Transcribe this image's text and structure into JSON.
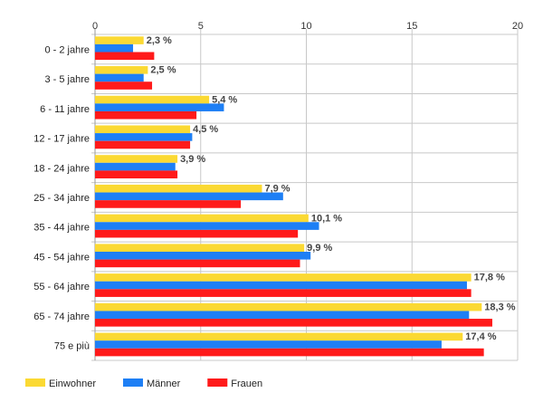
{
  "chart_data": {
    "type": "bar",
    "orientation": "horizontal",
    "categories": [
      "0 - 2 jahre",
      "3 - 5 jahre",
      "6 - 11 jahre",
      "12 - 17 jahre",
      "18 - 24 jahre",
      "25 - 34 jahre",
      "35 - 44 jahre",
      "45 - 54 jahre",
      "55 - 64 jahre",
      "65 - 74 jahre",
      "75 e più"
    ],
    "series": [
      {
        "name": "Einwohner",
        "color": "#FBD933",
        "values": [
          2.3,
          2.5,
          5.4,
          4.5,
          3.9,
          7.9,
          10.1,
          9.9,
          17.8,
          18.3,
          17.4
        ]
      },
      {
        "name": "Männer",
        "color": "#1E7FF5",
        "values": [
          1.8,
          2.3,
          6.1,
          4.6,
          3.8,
          8.9,
          10.6,
          10.2,
          17.6,
          17.7,
          16.4
        ]
      },
      {
        "name": "Frauen",
        "color": "#FF1A1A",
        "values": [
          2.8,
          2.7,
          4.8,
          4.5,
          3.9,
          6.9,
          9.6,
          9.7,
          17.8,
          18.8,
          18.4
        ]
      }
    ],
    "data_labels": [
      "2,3 %",
      "2,5 %",
      "5,4 %",
      "4,5 %",
      "3,9 %",
      "7,9 %",
      "10,1 %",
      "9,9 %",
      "17,8 %",
      "18,3 %",
      "17,4 %"
    ],
    "xlim": [
      0,
      20
    ],
    "xticks": [
      0,
      5,
      10,
      15,
      20
    ],
    "grid": true,
    "legend_position": "bottom-left",
    "title": "",
    "xlabel": "",
    "ylabel": ""
  }
}
